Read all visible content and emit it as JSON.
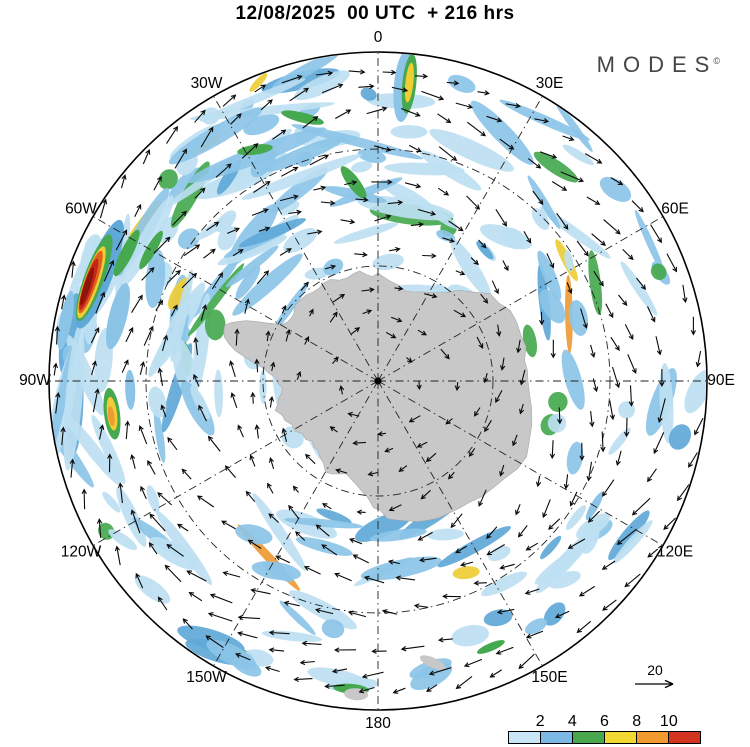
{
  "title": "12/08/2025  00 UTC  + 216 hrs",
  "brand": {
    "name": "MODES",
    "mark": "©"
  },
  "map": {
    "projection": "south-polar-stereographic",
    "land_color": "#c8c8c8",
    "arrow_color": "#0a0a0a",
    "graticule_color": "#222222",
    "longitude_labels": [
      {
        "label": "0",
        "angle": 0
      },
      {
        "label": "30E",
        "angle": 30
      },
      {
        "label": "60E",
        "angle": 60
      },
      {
        "label": "90E",
        "angle": 90
      },
      {
        "label": "120E",
        "angle": 120
      },
      {
        "label": "150E",
        "angle": 150
      },
      {
        "label": "180",
        "angle": 180
      },
      {
        "label": "150W",
        "angle": 210
      },
      {
        "label": "120W",
        "angle": 240
      },
      {
        "label": "90W",
        "angle": 270
      },
      {
        "label": "60W",
        "angle": 300
      },
      {
        "label": "30W",
        "angle": 330
      }
    ]
  },
  "reference_arrow": {
    "label": "20"
  },
  "colorbar": {
    "values": [
      "2",
      "4",
      "6",
      "8",
      "10"
    ],
    "colors": [
      "#c9e6f6",
      "#7cb9e4",
      "#49a84e",
      "#f2d832",
      "#f09a30",
      "#d33420"
    ]
  },
  "chart_data": {
    "type": "heatmap",
    "title": "12/08/2025 00 UTC + 216 hrs",
    "projection": "south polar stereographic (Antarctica centered)",
    "longitude_ticks": [
      "0",
      "30E",
      "60E",
      "90E",
      "120E",
      "150E",
      "180",
      "150W",
      "120W",
      "90W",
      "60W",
      "30W"
    ],
    "legend_levels": [
      2,
      4,
      6,
      8,
      10
    ],
    "legend_colors": [
      "#c9e6f6",
      "#7cb9e4",
      "#49a84e",
      "#f2d832",
      "#f09a30",
      "#d33420"
    ],
    "reference_vector_magnitude": 20,
    "vector_field": "circumpolar eastward (clockwise) flow around Antarctica with wavy jet perturbations",
    "shading_features": [
      {
        "location": "near 60W-70W at map edge",
        "value": ">10",
        "note": "strong elongated maximum, dark red core"
      },
      {
        "location": "near 95W mid-radius",
        "value": "6-10",
        "note": "yellow/orange spot in green streak"
      },
      {
        "location": "near 0-5E at map edge",
        "value": "6-8",
        "note": "radially elongated green/yellow streak"
      },
      {
        "location": "widespread",
        "value": "<4",
        "note": "scattered light-blue filaments along the flow"
      }
    ]
  }
}
